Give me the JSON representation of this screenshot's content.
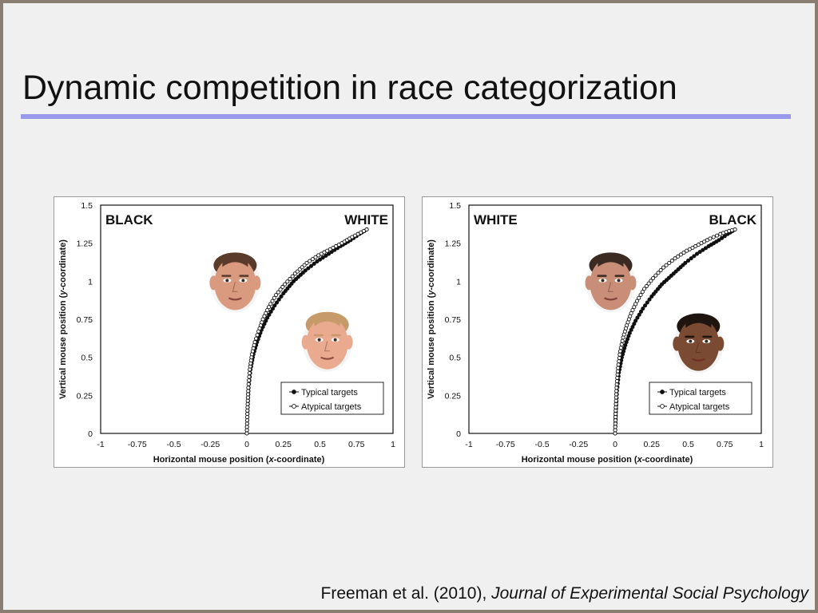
{
  "slide": {
    "title": "Dynamic competition in race categorization",
    "citation": {
      "authors": "Freeman et al. (2010), ",
      "journal": "Journal of Experimental Social Psychology"
    }
  },
  "chart_data": [
    {
      "type": "line",
      "corner_labels": {
        "left": "BLACK",
        "right": "WHITE"
      },
      "xlabel": {
        "pre": "Horizontal mouse position (",
        "var": "x",
        "post": "-coordinate)"
      },
      "ylabel": {
        "pre": "Vertical mouse position (",
        "var": "y",
        "post": "-coordinate)"
      },
      "xlim": [
        -1,
        1
      ],
      "ylim": [
        0,
        1.5
      ],
      "xticks": [
        "-1",
        "-0.75",
        "-0.5",
        "-0.25",
        "0",
        "0.25",
        "0.5",
        "0.75",
        "1"
      ],
      "yticks": [
        "0",
        "0.25",
        "0.5",
        "0.75",
        "1",
        "1.25",
        "1.5"
      ],
      "legend": "bottom-right",
      "images": [
        {
          "icon": "face-typical-white",
          "skin": "#d99a80",
          "hair": "#5a3a2a",
          "x": -0.08,
          "y": 1.0
        },
        {
          "icon": "face-atypical-white",
          "skin": "#eaaa90",
          "hair": "#c79a6a",
          "x": 0.55,
          "y": 0.61
        }
      ],
      "series": [
        {
          "name": "Typical targets",
          "marker": "filled",
          "x": [
            0,
            0.005,
            0.012,
            0.025,
            0.045,
            0.07,
            0.1,
            0.14,
            0.19,
            0.25,
            0.32,
            0.4,
            0.48,
            0.56,
            0.64,
            0.71,
            0.77,
            0.82
          ],
          "y": [
            0,
            0.15,
            0.3,
            0.42,
            0.52,
            0.6,
            0.68,
            0.76,
            0.84,
            0.92,
            1.0,
            1.07,
            1.13,
            1.18,
            1.23,
            1.27,
            1.31,
            1.34
          ]
        },
        {
          "name": "Atypical targets",
          "marker": "open",
          "x": [
            0,
            0.004,
            0.01,
            0.02,
            0.035,
            0.055,
            0.08,
            0.11,
            0.15,
            0.2,
            0.26,
            0.33,
            0.41,
            0.49,
            0.57,
            0.65,
            0.72,
            0.78,
            0.82
          ],
          "y": [
            0,
            0.15,
            0.3,
            0.42,
            0.52,
            0.6,
            0.67,
            0.75,
            0.83,
            0.91,
            0.98,
            1.05,
            1.12,
            1.17,
            1.21,
            1.25,
            1.29,
            1.32,
            1.34
          ]
        }
      ]
    },
    {
      "type": "line",
      "corner_labels": {
        "left": "WHITE",
        "right": "BLACK"
      },
      "xlabel": {
        "pre": "Horizontal mouse position (",
        "var": "x",
        "post": "-coordinate)"
      },
      "ylabel": {
        "pre": "Vertical mouse position (",
        "var": "y",
        "post": "-coordinate)"
      },
      "xlim": [
        -1,
        1
      ],
      "ylim": [
        0,
        1.5
      ],
      "xticks": [
        "-1",
        "-0.75",
        "-0.5",
        "-0.25",
        "0",
        "0.25",
        "0.5",
        "0.75",
        "1"
      ],
      "yticks": [
        "0",
        "0.25",
        "0.5",
        "0.75",
        "1",
        "1.25",
        "1.5"
      ],
      "legend": "bottom-right",
      "images": [
        {
          "icon": "face-atypical-black",
          "skin": "#c98e78",
          "hair": "#3a2a22",
          "x": -0.03,
          "y": 1.0
        },
        {
          "icon": "face-typical-black",
          "skin": "#7a4a32",
          "hair": "#1e1410",
          "x": 0.57,
          "y": 0.6
        }
      ],
      "series": [
        {
          "name": "Typical targets",
          "marker": "filled",
          "x": [
            0,
            0.005,
            0.013,
            0.026,
            0.046,
            0.07,
            0.1,
            0.14,
            0.19,
            0.25,
            0.32,
            0.4,
            0.48,
            0.56,
            0.64,
            0.71,
            0.77,
            0.82
          ],
          "y": [
            0,
            0.14,
            0.28,
            0.4,
            0.5,
            0.58,
            0.66,
            0.74,
            0.82,
            0.9,
            0.98,
            1.05,
            1.12,
            1.18,
            1.23,
            1.27,
            1.31,
            1.34
          ]
        },
        {
          "name": "Atypical targets",
          "marker": "open",
          "x": [
            0,
            0.004,
            0.01,
            0.02,
            0.035,
            0.055,
            0.08,
            0.11,
            0.15,
            0.2,
            0.26,
            0.33,
            0.41,
            0.49,
            0.57,
            0.65,
            0.72,
            0.78,
            0.82
          ],
          "y": [
            0,
            0.15,
            0.3,
            0.43,
            0.54,
            0.63,
            0.71,
            0.79,
            0.87,
            0.95,
            1.02,
            1.09,
            1.15,
            1.2,
            1.24,
            1.28,
            1.31,
            1.33,
            1.34
          ]
        }
      ]
    }
  ]
}
